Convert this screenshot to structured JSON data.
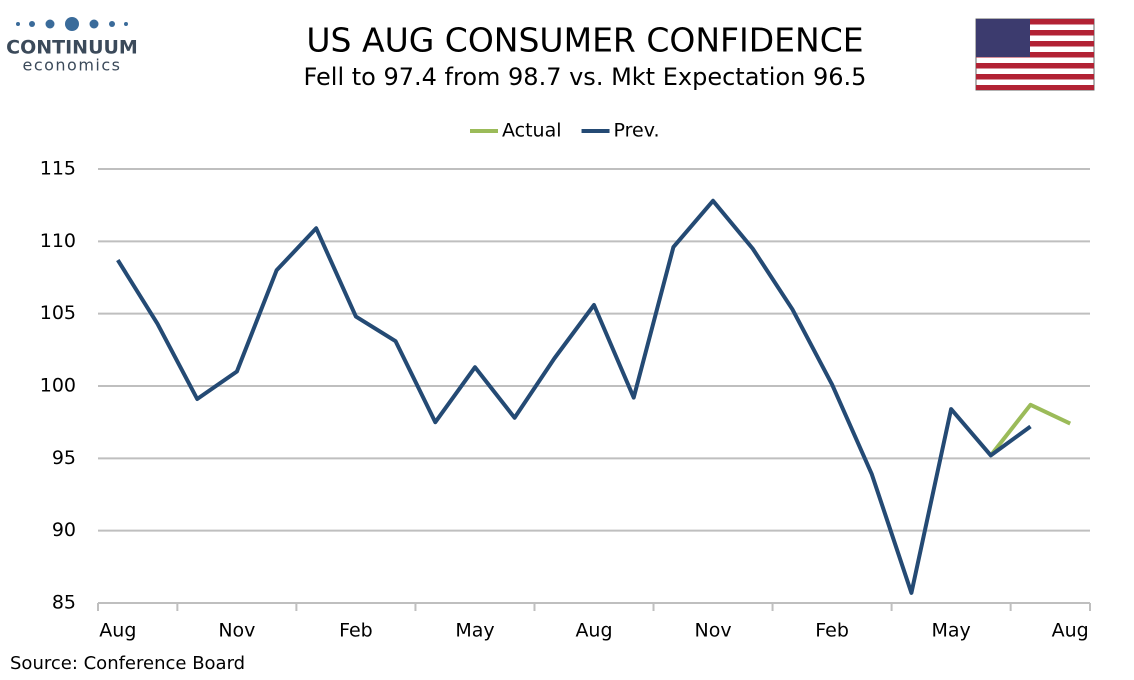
{
  "logo": {
    "name": "CONTINUUM",
    "sub": "economics"
  },
  "chart_data": {
    "type": "line",
    "title": "US AUG CONSUMER CONFIDENCE",
    "subtitle": "Fell to 97.4 from 98.7 vs. Mkt Expectation 96.5",
    "source": "Source: Conference Board",
    "categories": [
      "Aug",
      null,
      null,
      "Nov",
      null,
      null,
      "Feb",
      null,
      null,
      "May",
      null,
      null,
      "Aug",
      null,
      null,
      "Nov",
      null,
      null,
      "Feb",
      null,
      null,
      "May",
      null,
      null,
      "Aug"
    ],
    "series": [
      {
        "name": "Actual",
        "color": "#9bbb59",
        "values": [
          null,
          null,
          null,
          null,
          null,
          null,
          null,
          null,
          null,
          null,
          null,
          null,
          null,
          null,
          null,
          null,
          null,
          null,
          null,
          null,
          null,
          null,
          95.2,
          98.7,
          97.4
        ]
      },
      {
        "name": "Prev.",
        "color": "#244a74",
        "values": [
          108.7,
          104.3,
          99.1,
          101.0,
          108.0,
          110.9,
          104.8,
          103.1,
          97.5,
          101.3,
          97.8,
          101.9,
          105.6,
          99.2,
          109.6,
          112.8,
          109.5,
          105.3,
          100.1,
          93.9,
          85.7,
          98.4,
          95.2,
          97.2,
          null
        ]
      }
    ],
    "ylim": [
      85,
      115
    ],
    "yticks": [
      85,
      90,
      95,
      100,
      105,
      110,
      115
    ],
    "grid": true,
    "legend": "top"
  }
}
